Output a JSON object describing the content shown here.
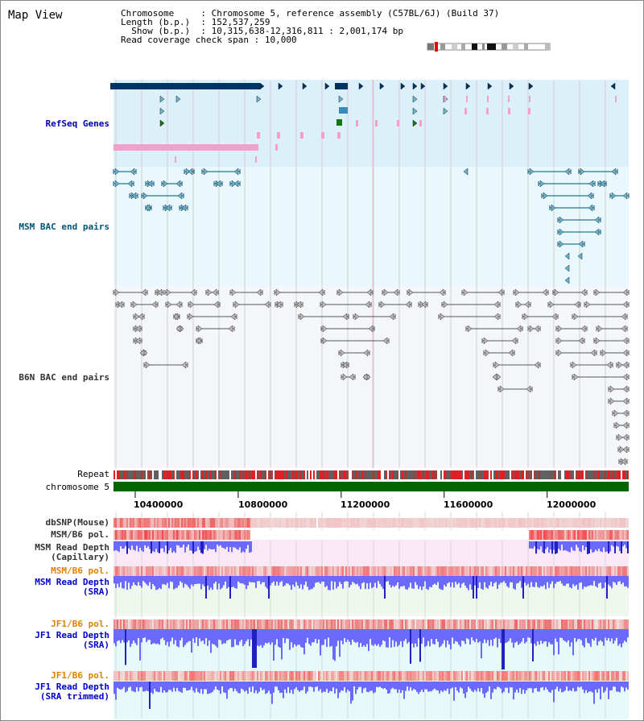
{
  "page": {
    "title": "Map View"
  },
  "header": {
    "chromosome_key": "Chromosome",
    "chromosome_value": "Chromosome 5, reference assembly (C57BL/6J) (Build 37)",
    "length_key": "Length (b.p.)",
    "length_value": "152,537,259",
    "show_key": "Show (b.p.)",
    "show_value": "10,315,638-12,316,811 : 2,001,174 bp",
    "coverage_key": "Read coverage check span",
    "coverage_value": "10,000"
  },
  "tracks": {
    "refseq": {
      "label": "RefSeq Genes",
      "color": "#0000aa"
    },
    "msm_bac": {
      "label": "MSM BAC end pairs",
      "color": "#005577"
    },
    "b6n_bac": {
      "label": "B6N BAC end pairs",
      "color": "#333333"
    },
    "repeat": {
      "label": "Repeat"
    },
    "chromosome": {
      "label": "chromosome 5"
    },
    "dbsnp": {
      "label": "dbSNP(Mouse)"
    },
    "msm_b6_pol_1": {
      "label": "MSM/B6 pol."
    },
    "msm_depth_cap": {
      "line1": "MSM Read Depth",
      "line2": "(Capillary)"
    },
    "msm_b6_pol_2": {
      "label": "MSM/B6 pol.",
      "color": "#e08000"
    },
    "msm_depth_sra": {
      "line1": "MSM Read Depth",
      "line2": "(SRA)",
      "color": "#0000cc"
    },
    "jf1_b6_pol_1": {
      "label": "JF1/B6 pol.",
      "color": "#e08000"
    },
    "jf1_depth_sra": {
      "line1": "JF1 Read Depth",
      "line2": "(SRA)",
      "color": "#0000cc"
    },
    "jf1_b6_pol_2": {
      "label": "JF1/B6 pol.",
      "color": "#e08000"
    },
    "jf1_depth_trim": {
      "line1": "JF1 Read Depth",
      "line2": "(SRA trimmed)",
      "color": "#0000cc"
    }
  },
  "axis": {
    "ticks": [
      "10400000",
      "10800000",
      "11200000",
      "11600000",
      "12000000"
    ],
    "tick_values": [
      10400000,
      10800000,
      11200000,
      11600000,
      12000000
    ],
    "view_start": 10315638,
    "view_end": 12316811
  },
  "colors": {
    "refseq_bg": "#dcf0fa",
    "msm_bg": "#e8f8fc",
    "b6n_bg": "#f4f6fa",
    "chromosome": "#006400",
    "depth_blue": "#5050ff",
    "pol_red": "#e84040",
    "gene_dark": "#003366",
    "gene_pink": "#f4a0c8"
  }
}
